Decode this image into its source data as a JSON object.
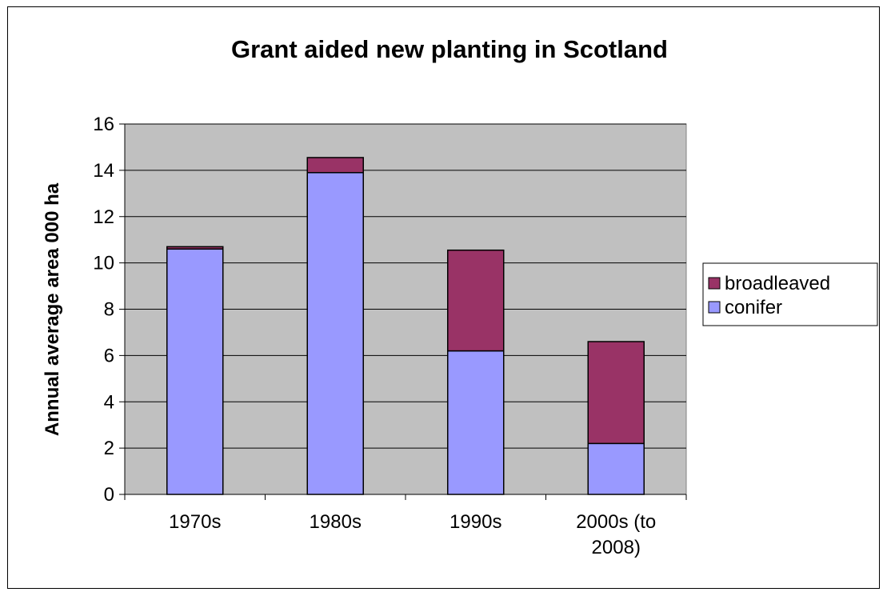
{
  "chart_data": {
    "type": "bar",
    "stacked": true,
    "title": "Grant aided new planting in Scotland",
    "xlabel": "",
    "ylabel": "Annual average area 000 ha",
    "ylim": [
      0,
      16
    ],
    "yticks": [
      0,
      2,
      4,
      6,
      8,
      10,
      12,
      14,
      16
    ],
    "grid": true,
    "legend_position": "right",
    "categories": [
      [
        "1970s"
      ],
      [
        "1980s"
      ],
      [
        "1990s"
      ],
      [
        "2000s (to",
        "2008)"
      ]
    ],
    "series": [
      {
        "name": "conifer",
        "values": [
          10.6,
          13.9,
          6.2,
          2.2
        ],
        "color": "#9999ff"
      },
      {
        "name": "broadleaved",
        "values": [
          0.1,
          0.65,
          4.35,
          4.4
        ],
        "color": "#993366"
      }
    ],
    "legend": [
      "broadleaved",
      "conifer"
    ],
    "plot_background": "#c0c0c0"
  }
}
